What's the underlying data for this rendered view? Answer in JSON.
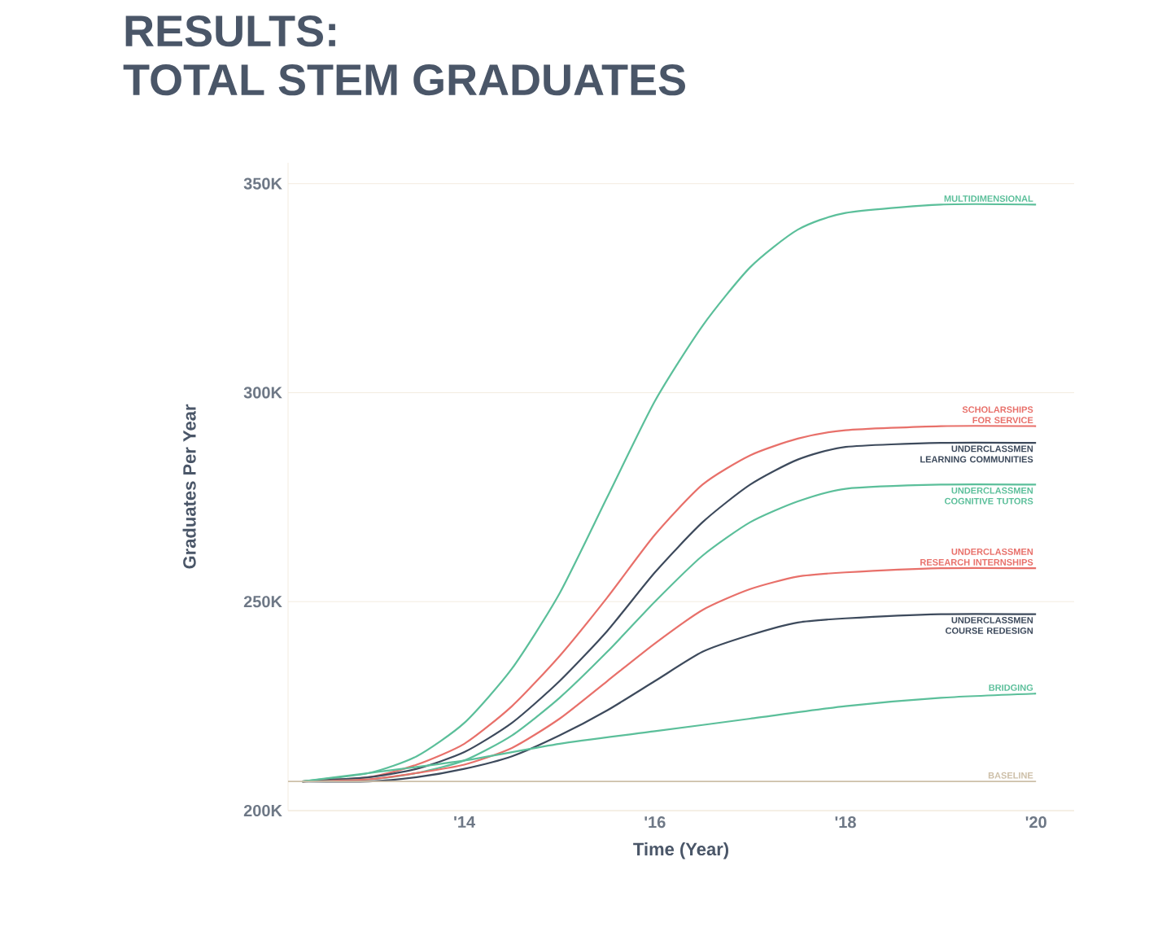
{
  "chart_data": {
    "type": "line",
    "title": "RESULTS:",
    "subtitle": "TOTAL STEM GRADUATES",
    "xlabel": "Time (Year)",
    "ylabel": "Graduates Per Year",
    "xlim": [
      2012.15,
      2020.4
    ],
    "ylim": [
      200,
      355
    ],
    "xticks": [
      {
        "value": 2014,
        "label": "'14"
      },
      {
        "value": 2016,
        "label": "'16"
      },
      {
        "value": 2018,
        "label": "'18"
      },
      {
        "value": 2020,
        "label": "'20"
      }
    ],
    "yticks": [
      {
        "value": 200,
        "label": "200K"
      },
      {
        "value": 250,
        "label": "250K"
      },
      {
        "value": 300,
        "label": "300K"
      },
      {
        "value": 350,
        "label": "350K"
      }
    ],
    "grid": "y",
    "marker": "none",
    "line_style": "solid",
    "series": [
      {
        "name": "MULTIDIMENSIONAL",
        "color": "#5bbf9a",
        "x": [
          2012.3,
          2013,
          2013.5,
          2014,
          2014.5,
          2015,
          2015.5,
          2016,
          2016.5,
          2017,
          2017.5,
          2018,
          2019,
          2020
        ],
        "values": [
          207,
          209,
          213,
          221,
          234,
          252,
          275,
          298,
          316,
          330,
          339,
          343,
          345,
          345
        ]
      },
      {
        "name": "SCHOLARSHIPS FOR SERVICE",
        "color": "#e8706a",
        "x": [
          2012.3,
          2013,
          2013.5,
          2014,
          2014.5,
          2015,
          2015.5,
          2016,
          2016.5,
          2017,
          2017.5,
          2018,
          2019,
          2020
        ],
        "values": [
          207,
          208,
          211,
          216,
          225,
          237,
          251,
          266,
          278,
          285,
          289,
          291,
          292,
          292
        ]
      },
      {
        "name": "UNDERCLASSMEN LEARNING COMMUNITIES",
        "color": "#3d4a5c",
        "x": [
          2012.3,
          2013,
          2013.5,
          2014,
          2014.5,
          2015,
          2015.5,
          2016,
          2016.5,
          2017,
          2017.5,
          2018,
          2019,
          2020
        ],
        "values": [
          207,
          208,
          210,
          214,
          221,
          231,
          243,
          257,
          269,
          278,
          284,
          287,
          288,
          288
        ]
      },
      {
        "name": "UNDERCLASSMEN COGNITIVE TUTORS",
        "color": "#5bbf9a",
        "x": [
          2012.3,
          2013,
          2013.5,
          2014,
          2014.5,
          2015,
          2015.5,
          2016,
          2016.5,
          2017,
          2017.5,
          2018,
          2019,
          2020
        ],
        "values": [
          207,
          207.5,
          209,
          212,
          218,
          227,
          238,
          250,
          261,
          269,
          274,
          277,
          278,
          278
        ]
      },
      {
        "name": "UNDERCLASSMEN RESEARCH INTERNSHIPS",
        "color": "#e8706a",
        "x": [
          2012.3,
          2013,
          2013.5,
          2014,
          2014.5,
          2015,
          2015.5,
          2016,
          2016.5,
          2017,
          2017.5,
          2018,
          2019,
          2020
        ],
        "values": [
          207,
          207.5,
          209,
          211,
          215,
          222,
          231,
          240,
          248,
          253,
          256,
          257,
          258,
          258
        ]
      },
      {
        "name": "UNDERCLASSMEN COURSE REDESIGN",
        "color": "#3d4a5c",
        "x": [
          2012.3,
          2013,
          2013.5,
          2014,
          2014.5,
          2015,
          2015.5,
          2016,
          2016.5,
          2017,
          2017.5,
          2018,
          2019,
          2020
        ],
        "values": [
          207,
          207,
          208,
          210,
          213,
          218,
          224,
          231,
          238,
          242,
          245,
          246,
          247,
          247
        ]
      },
      {
        "name": "BRIDGING",
        "color": "#5bbf9a",
        "x": [
          2012.3,
          2013,
          2014,
          2015,
          2016,
          2017,
          2018,
          2019,
          2020
        ],
        "values": [
          207,
          209,
          212,
          216,
          219,
          222,
          225,
          227,
          228
        ]
      },
      {
        "name": "BASELINE",
        "color": "#cdbfa8",
        "x": [
          2012.15,
          2020
        ],
        "values": [
          207,
          207
        ]
      }
    ]
  }
}
